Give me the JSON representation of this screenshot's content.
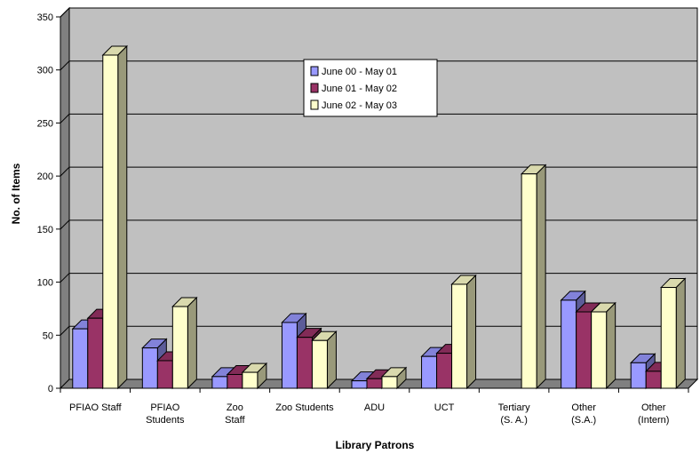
{
  "chart_data": {
    "type": "bar",
    "title": "",
    "xlabel": "Library Patrons",
    "ylabel": "No. of Items",
    "ylim": [
      0,
      350
    ],
    "yticks": [
      0,
      50,
      100,
      150,
      200,
      250,
      300,
      350
    ],
    "grid": true,
    "legend_position": "top-center",
    "categories": [
      [
        "PFIAO Staff"
      ],
      [
        "PFIAO",
        "Students"
      ],
      [
        "Zoo",
        "Staff"
      ],
      [
        "Zoo Students"
      ],
      [
        "ADU"
      ],
      [
        "UCT"
      ],
      [
        "Tertiary",
        "(S. A.)"
      ],
      [
        "Other",
        "(S.A.)"
      ],
      [
        "Other",
        "(Intern)"
      ]
    ],
    "series": [
      {
        "name": "June 00 - May 01",
        "color": "#9999ff",
        "values": [
          56,
          38,
          11,
          62,
          7,
          30,
          0,
          83,
          24
        ]
      },
      {
        "name": "June 01 - May 02",
        "color": "#993366",
        "values": [
          66,
          26,
          13,
          48,
          9,
          33,
          0,
          72,
          16
        ]
      },
      {
        "name": "June 02 - May 03",
        "color": "#ffffcc",
        "values": [
          314,
          77,
          15,
          45,
          11,
          98,
          202,
          72,
          95
        ]
      }
    ],
    "colors": {
      "plot_wall": "#c0c0c0",
      "floor": "#808080",
      "gridline": "#000000"
    }
  }
}
